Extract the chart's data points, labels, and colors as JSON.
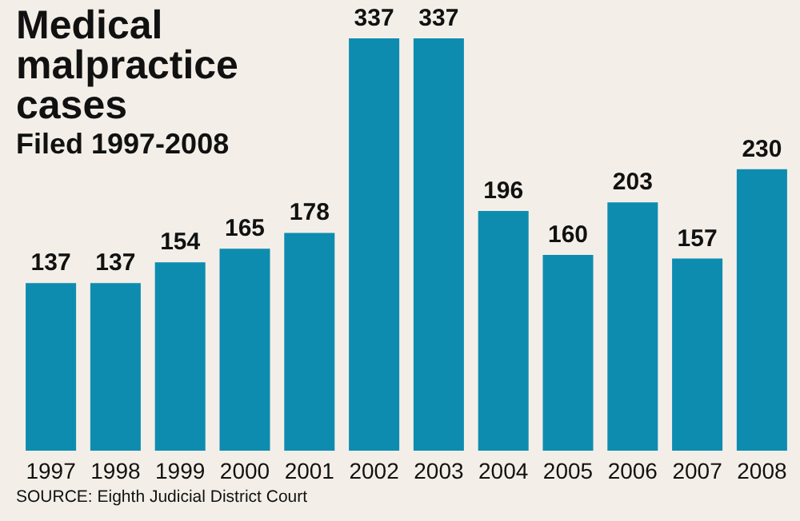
{
  "chart_data": {
    "type": "bar",
    "title": "Medical malpractice cases",
    "subtitle": "Filed 1997-2008",
    "categories": [
      "1997",
      "1998",
      "1999",
      "2000",
      "2001",
      "2002",
      "2003",
      "2004",
      "2005",
      "2006",
      "2007",
      "2008"
    ],
    "values": [
      137,
      137,
      154,
      165,
      178,
      337,
      337,
      196,
      160,
      203,
      157,
      230
    ],
    "color": "#0e8cb0",
    "data_labels": true,
    "annotations": [
      "SOURCE: Eighth Judicial District Court"
    ]
  }
}
